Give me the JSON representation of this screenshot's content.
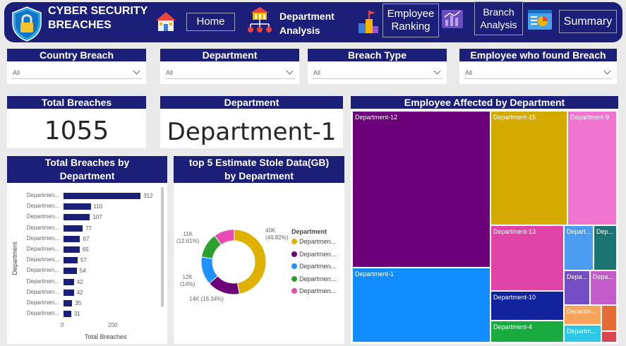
{
  "header": {
    "title_line1": "CYBER SECURITY",
    "title_line2": "BREACHES",
    "nav": {
      "home": "Home",
      "dept_line1": "Department",
      "dept_line2": "Analysis",
      "emp_line1": "Employee",
      "emp_line2": "Ranking",
      "branch_line1": "Branch",
      "branch_line2": "Analysis",
      "summary": "Summary"
    }
  },
  "slicers": [
    {
      "title": "Country Breach",
      "value": "All"
    },
    {
      "title": "Department",
      "value": "All"
    },
    {
      "title": "Breach Type",
      "value": "All"
    },
    {
      "title": "Employee who found Breach",
      "value": "All"
    }
  ],
  "cards": {
    "total_title": "Total Breaches",
    "total_value": "1055",
    "dept_title": "Department",
    "dept_value": "Department-1"
  },
  "bar_chart": {
    "title_line1": "Total Breaches by",
    "title_line2": "Department",
    "ylabel": "Department",
    "xlabel": "Total Breaches",
    "xticks": [
      "0",
      "200"
    ]
  },
  "donut_chart": {
    "title_line1": "top 5 Estimate Stole Data(GB)",
    "title_line2": "by Department",
    "legend_title": "Department",
    "labels": [
      {
        "l1": "40K",
        "l2": "(46.82%)"
      },
      {
        "l1": "14K (16.34%)",
        "l2": ""
      },
      {
        "l1": "12K",
        "l2": "(14%)"
      },
      {
        "l1": "11K",
        "l2": "(12.61%)"
      }
    ]
  },
  "treemap": {
    "title": "Employee Affected by Department"
  },
  "chart_data": [
    {
      "type": "bar",
      "orientation": "horizontal",
      "title": "Total Breaches by Department",
      "xlabel": "Total Breaches",
      "ylabel": "Department",
      "xlim": [
        0,
        340
      ],
      "categories": [
        "Departmen...",
        "Departmen...",
        "Departmen...",
        "Departmen...",
        "Departmen...",
        "Departmen...",
        "Departmen...",
        "Departmen...",
        "Departmen...",
        "Departmen...",
        "Departmen...",
        "Departmen..."
      ],
      "values": [
        312,
        110,
        107,
        77,
        67,
        65,
        57,
        54,
        42,
        42,
        35,
        31
      ],
      "color": "#1b1f78"
    },
    {
      "type": "pie",
      "donut": true,
      "title": "top 5 Estimate Stole Data(GB) by Department",
      "legend_title": "Department",
      "legend_position": "right",
      "categories": [
        "Departmen...",
        "Departmen...",
        "Departmen...",
        "Departmen...",
        "Departmen..."
      ],
      "values": [
        46.82,
        16.34,
        14.0,
        12.61,
        10.23
      ],
      "colors": [
        "#dfb100",
        "#6b0078",
        "#1e90ff",
        "#2ca02c",
        "#e94ab6"
      ]
    },
    {
      "type": "treemap",
      "title": "Employee Affected by Department",
      "items": [
        {
          "label": "Department-12",
          "color": "#6b0078"
        },
        {
          "label": "Department-15",
          "color": "#d4aa00"
        },
        {
          "label": "Department-9",
          "color": "#f075d0"
        },
        {
          "label": "Department-1",
          "color": "#118dff"
        },
        {
          "label": "Department-13",
          "color": "#e044a7"
        },
        {
          "label": "Depart...",
          "color": "#4b9bf0"
        },
        {
          "label": "Dep...",
          "color": "#1c7472"
        },
        {
          "label": "Depa...",
          "color": "#744ec2"
        },
        {
          "label": "Depa...",
          "color": "#c15cc8"
        },
        {
          "label": "Department-10",
          "color": "#12239e"
        },
        {
          "label": "Department-4",
          "color": "#1aab40"
        },
        {
          "label": "Departm...",
          "color": "#f7a35c"
        },
        {
          "label": "",
          "color": "#e66c37"
        },
        {
          "label": "Departm...",
          "color": "#2ec7e6"
        },
        {
          "label": "",
          "color": "#d64550"
        }
      ]
    }
  ],
  "colors": {
    "header_bg": "#1b1f78",
    "panel_title_bg": "#1b1f78"
  }
}
